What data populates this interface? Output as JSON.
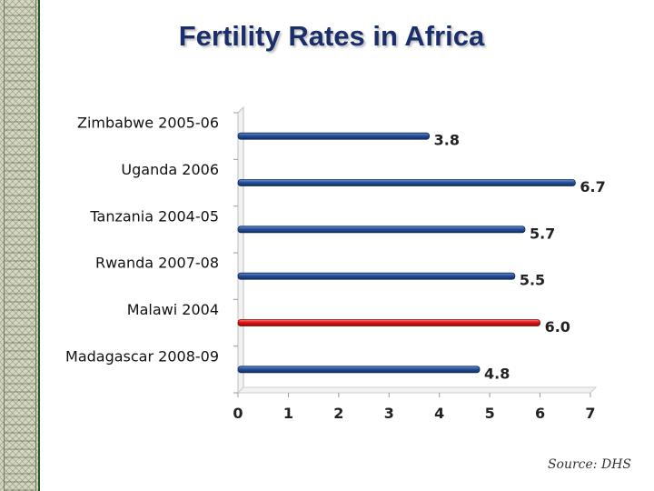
{
  "title": "Fertility Rates in Africa",
  "source": "Source: DHS",
  "colors": {
    "default_bar": "#1f4f99",
    "highlight_bar": "#e31414"
  },
  "chart_data": {
    "type": "bar",
    "orientation": "horizontal",
    "title": "Fertility Rates in Africa",
    "categories": [
      "Zimbabwe 2005-06",
      "Uganda 2006",
      "Tanzania 2004-05",
      "Rwanda 2007-08",
      "Malawi 2004",
      "Madagascar 2008-09"
    ],
    "values": [
      3.8,
      6.7,
      5.7,
      5.5,
      6.0,
      4.8
    ],
    "value_labels": [
      "3.8",
      "6.7",
      "5.7",
      "5.5",
      "6.0",
      "4.8"
    ],
    "highlight": [
      "Malawi 2004"
    ],
    "xlim": [
      0,
      7
    ],
    "xticks": [
      0,
      1,
      2,
      3,
      4,
      5,
      6,
      7
    ],
    "xlabel": "",
    "ylabel": "",
    "grid": false
  }
}
